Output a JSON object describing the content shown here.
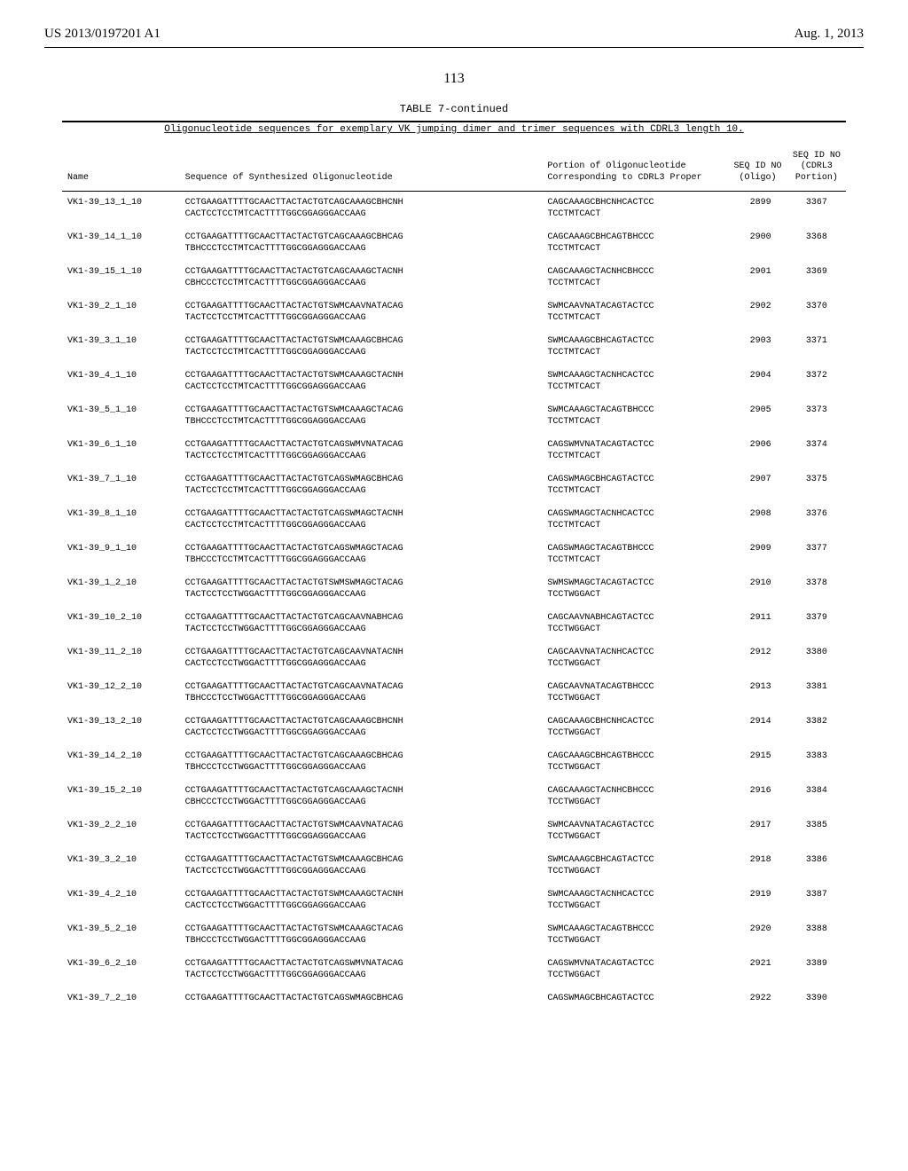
{
  "header": {
    "left": "US 2013/0197201 A1",
    "right": "Aug. 1, 2013"
  },
  "page_number": "113",
  "table": {
    "caption": "TABLE 7-continued",
    "subcaption": "Oligonucleotide sequences for exemplary VK jumping dimer and trimer sequences with CDRL3 length 10.",
    "columns": {
      "name": "Name",
      "sequence": "Sequence of Synthesized Oligonucleotide",
      "portion": "Portion of\nOligonucleotide\nCorresponding to\nCDRL3 Proper",
      "seqid_oligo": "SEQ ID\nNO\n(Oligo)",
      "seqid_cdrl3": "SEQ ID\nNO\n(CDRL3\nPortion)"
    },
    "rows": [
      {
        "name": "VK1-39_13_1_10",
        "seq": "CCTGAAGATTTTGCAACTTACTACTGTCAGCAAAGCBHCNH\nCACTCCTCCTMTCACTTTTGGCGGAGGGACCAAG",
        "portion": "CAGCAAAGCBHCNHCACTCC\nTCCTMTCACT",
        "id1": "2899",
        "id2": "3367"
      },
      {
        "name": "VK1-39_14_1_10",
        "seq": "CCTGAAGATTTTGCAACTTACTACTGTCAGCAAAGCBHCAG\nTBHCCCTCCTMTCACTTTTGGCGGAGGGACCAAG",
        "portion": "CAGCAAAGCBHCAGTBHCCC\nTCCTMTCACT",
        "id1": "2900",
        "id2": "3368"
      },
      {
        "name": "VK1-39_15_1_10",
        "seq": "CCTGAAGATTTTGCAACTTACTACTGTCAGCAAAGCTACNH\nCBHCCCTCCTMTCACTTTTGGCGGAGGGACCAAG",
        "portion": "CAGCAAAGCTACNHCBHCCC\nTCCTMTCACT",
        "id1": "2901",
        "id2": "3369"
      },
      {
        "name": "VK1-39_2_1_10",
        "seq": "CCTGAAGATTTTGCAACTTACTACTGTSWMCAAVNATACAG\nTACTCCTCCTMTCACTTTTGGCGGAGGGACCAAG",
        "portion": "SWMCAAVNATACAGTACTCC\nTCCTMTCACT",
        "id1": "2902",
        "id2": "3370"
      },
      {
        "name": "VK1-39_3_1_10",
        "seq": "CCTGAAGATTTTGCAACTTACTACTGTSWMCAAAGCBHCAG\nTACTCCTCCTMTCACTTTTGGCGGAGGGACCAAG",
        "portion": "SWMCAAAGCBHCAGTACTCC\nTCCTMTCACT",
        "id1": "2903",
        "id2": "3371"
      },
      {
        "name": "VK1-39_4_1_10",
        "seq": "CCTGAAGATTTTGCAACTTACTACTGTSWMCAAAGCTACNH\nCACTCCTCCTMTCACTTTTGGCGGAGGGACCAAG",
        "portion": "SWMCAAAGCTACNHCACTCC\nTCCTMTCACT",
        "id1": "2904",
        "id2": "3372"
      },
      {
        "name": "VK1-39_5_1_10",
        "seq": "CCTGAAGATTTTGCAACTTACTACTGTSWMCAAAGCTACAG\nTBHCCCTCCTMTCACTTTTGGCGGAGGGACCAAG",
        "portion": "SWMCAAAGCTACAGTBHCCC\nTCCTMTCACT",
        "id1": "2905",
        "id2": "3373"
      },
      {
        "name": "VK1-39_6_1_10",
        "seq": "CCTGAAGATTTTGCAACTTACTACTGTCAGSWMVNATACAG\nTACTCCTCCTMTCACTTTTGGCGGAGGGACCAAG",
        "portion": "CAGSWMVNATACAGTACTCC\nTCCTMTCACT",
        "id1": "2906",
        "id2": "3374"
      },
      {
        "name": "VK1-39_7_1_10",
        "seq": "CCTGAAGATTTTGCAACTTACTACTGTCAGSWMAGCBHCAG\nTACTCCTCCTMTCACTTTTGGCGGAGGGACCAAG",
        "portion": "CAGSWMAGCBHCAGTACTCC\nTCCTMTCACT",
        "id1": "2907",
        "id2": "3375"
      },
      {
        "name": "VK1-39_8_1_10",
        "seq": "CCTGAAGATTTTGCAACTTACTACTGTCAGSWMAGCTACNH\nCACTCCTCCTMTCACTTTTGGCGGAGGGACCAAG",
        "portion": "CAGSWMAGCTACNHCACTCC\nTCCTMTCACT",
        "id1": "2908",
        "id2": "3376"
      },
      {
        "name": "VK1-39_9_1_10",
        "seq": "CCTGAAGATTTTGCAACTTACTACTGTCAGSWMAGCTACAG\nTBHCCCTCCTMTCACTTTTGGCGGAGGGACCAAG",
        "portion": "CAGSWMAGCTACAGTBHCCC\nTCCTMTCACT",
        "id1": "2909",
        "id2": "3377"
      },
      {
        "name": "VK1-39_1_2_10",
        "seq": "CCTGAAGATTTTGCAACTTACTACTGTSWMSWMAGCTACAG\nTACTCCTCCTWGGACTTTTGGCGGAGGGACCAAG",
        "portion": "SWMSWMAGCTACAGTACTCC\nTCCTWGGACT",
        "id1": "2910",
        "id2": "3378"
      },
      {
        "name": "VK1-39_10_2_10",
        "seq": "CCTGAAGATTTTGCAACTTACTACTGTCAGCAAVNABHCAG\nTACTCCTCCTWGGACTTTTGGCGGAGGGACCAAG",
        "portion": "CAGCAAVNABHCAGTACTCC\nTCCTWGGACT",
        "id1": "2911",
        "id2": "3379"
      },
      {
        "name": "VK1-39_11_2_10",
        "seq": "CCTGAAGATTTTGCAACTTACTACTGTCAGCAAVNATACNH\nCACTCCTCCTWGGACTTTTGGCGGAGGGACCAAG",
        "portion": "CAGCAAVNATACNHCACTCC\nTCCTWGGACT",
        "id1": "2912",
        "id2": "3380"
      },
      {
        "name": "VK1-39_12_2_10",
        "seq": "CCTGAAGATTTTGCAACTTACTACTGTCAGCAAVNATACAG\nTBHCCCTCCTWGGACTTTTGGCGGAGGGACCAAG",
        "portion": "CAGCAAVNATACAGTBHCCC\nTCCTWGGACT",
        "id1": "2913",
        "id2": "3381"
      },
      {
        "name": "VK1-39_13_2_10",
        "seq": "CCTGAAGATTTTGCAACTTACTACTGTCAGCAAAGCBHCNH\nCACTCCTCCTWGGACTTTTGGCGGAGGGACCAAG",
        "portion": "CAGCAAAGCBHCNHCACTCC\nTCCTWGGACT",
        "id1": "2914",
        "id2": "3382"
      },
      {
        "name": "VK1-39_14_2_10",
        "seq": "CCTGAAGATTTTGCAACTTACTACTGTCAGCAAAGCBHCAG\nTBHCCCTCCTWGGACTTTTGGCGGAGGGACCAAG",
        "portion": "CAGCAAAGCBHCAGTBHCCC\nTCCTWGGACT",
        "id1": "2915",
        "id2": "3383"
      },
      {
        "name": "VK1-39_15_2_10",
        "seq": "CCTGAAGATTTTGCAACTTACTACTGTCAGCAAAGCTACNH\nCBHCCCTCCTWGGACTTTTGGCGGAGGGACCAAG",
        "portion": "CAGCAAAGCTACNHCBHCCC\nTCCTWGGACT",
        "id1": "2916",
        "id2": "3384"
      },
      {
        "name": "VK1-39_2_2_10",
        "seq": "CCTGAAGATTTTGCAACTTACTACTGTSWMCAAVNATACAG\nTACTCCTCCTWGGACTTTTGGCGGAGGGACCAAG",
        "portion": "SWMCAAVNATACAGTACTCC\nTCCTWGGACT",
        "id1": "2917",
        "id2": "3385"
      },
      {
        "name": "VK1-39_3_2_10",
        "seq": "CCTGAAGATTTTGCAACTTACTACTGTSWMCAAAGCBHCAG\nTACTCCTCCTWGGACTTTTGGCGGAGGGACCAAG",
        "portion": "SWMCAAAGCBHCAGTACTCC\nTCCTWGGACT",
        "id1": "2918",
        "id2": "3386"
      },
      {
        "name": "VK1-39_4_2_10",
        "seq": "CCTGAAGATTTTGCAACTTACTACTGTSWMCAAAGCTACNH\nCACTCCTCCTWGGACTTTTGGCGGAGGGACCAAG",
        "portion": "SWMCAAAGCTACNHCACTCC\nTCCTWGGACT",
        "id1": "2919",
        "id2": "3387"
      },
      {
        "name": "VK1-39_5_2_10",
        "seq": "CCTGAAGATTTTGCAACTTACTACTGTSWMCAAAGCTACAG\nTBHCCCTCCTWGGACTTTTGGCGGAGGGACCAAG",
        "portion": "SWMCAAAGCTACAGTBHCCC\nTCCTWGGACT",
        "id1": "2920",
        "id2": "3388"
      },
      {
        "name": "VK1-39_6_2_10",
        "seq": "CCTGAAGATTTTGCAACTTACTACTGTCAGSWMVNATACAG\nTACTCCTCCTWGGACTTTTGGCGGAGGGACCAAG",
        "portion": "CAGSWMVNATACAGTACTCC\nTCCTWGGACT",
        "id1": "2921",
        "id2": "3389"
      },
      {
        "name": "VK1-39_7_2_10",
        "seq": "CCTGAAGATTTTGCAACTTACTACTGTCAGSWMAGCBHCAG",
        "portion": "CAGSWMAGCBHCAGTACTCC",
        "id1": "2922",
        "id2": "3390"
      }
    ]
  }
}
